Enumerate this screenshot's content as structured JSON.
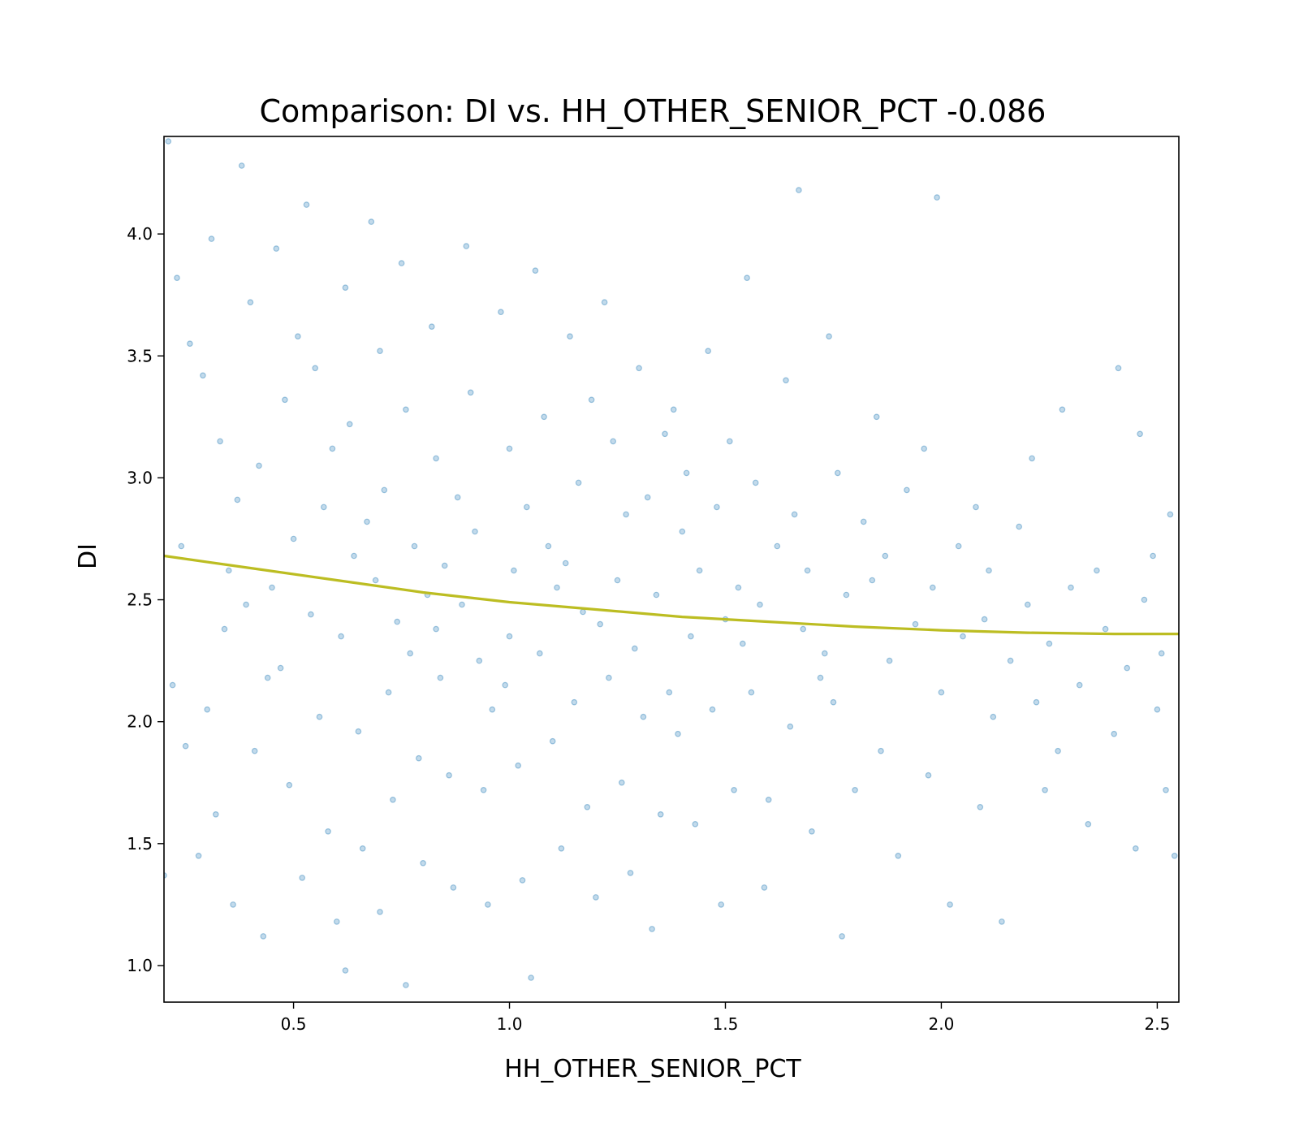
{
  "chart_data": {
    "type": "scatter",
    "title": "Comparison:  DI  vs.  HH_OTHER_SENIOR_PCT  -0.086",
    "xlabel": "HH_OTHER_SENIOR_PCT",
    "ylabel": "DI",
    "xlim": [
      0.2,
      2.55
    ],
    "ylim": [
      0.85,
      4.4
    ],
    "xticks": [
      0.5,
      1.0,
      1.5,
      2.0,
      2.5
    ],
    "xtick_labels": [
      "0.5",
      "1.0",
      "1.5",
      "2.0",
      "2.5"
    ],
    "yticks": [
      1.0,
      1.5,
      2.0,
      2.5,
      3.0,
      3.5,
      4.0
    ],
    "ytick_labels": [
      "1.0",
      "1.5",
      "2.0",
      "2.5",
      "3.0",
      "3.5",
      "4.0"
    ],
    "grid": false,
    "legend": "none",
    "series": [
      {
        "kind": "scatter",
        "color": "#1f77b4",
        "opacity": 0.3,
        "points": [
          [
            0.21,
            4.38
          ],
          [
            0.23,
            3.82
          ],
          [
            0.26,
            3.55
          ],
          [
            0.24,
            2.72
          ],
          [
            0.22,
            2.15
          ],
          [
            0.25,
            1.9
          ],
          [
            0.28,
            1.45
          ],
          [
            0.2,
            1.37
          ],
          [
            0.31,
            3.98
          ],
          [
            0.33,
            3.15
          ],
          [
            0.35,
            2.62
          ],
          [
            0.3,
            2.05
          ],
          [
            0.32,
            1.62
          ],
          [
            0.36,
            1.25
          ],
          [
            0.29,
            3.42
          ],
          [
            0.34,
            2.38
          ],
          [
            0.38,
            4.28
          ],
          [
            0.4,
            3.72
          ],
          [
            0.42,
            3.05
          ],
          [
            0.39,
            2.48
          ],
          [
            0.41,
            1.88
          ],
          [
            0.43,
            1.12
          ],
          [
            0.37,
            2.91
          ],
          [
            0.44,
            2.18
          ],
          [
            0.46,
            3.94
          ],
          [
            0.48,
            3.32
          ],
          [
            0.5,
            2.75
          ],
          [
            0.47,
            2.22
          ],
          [
            0.49,
            1.74
          ],
          [
            0.52,
            1.36
          ],
          [
            0.45,
            2.55
          ],
          [
            0.51,
            3.58
          ],
          [
            0.53,
            4.12
          ],
          [
            0.55,
            3.45
          ],
          [
            0.57,
            2.88
          ],
          [
            0.54,
            2.44
          ],
          [
            0.56,
            2.02
          ],
          [
            0.58,
            1.55
          ],
          [
            0.6,
            1.18
          ],
          [
            0.59,
            3.12
          ],
          [
            0.62,
            3.78
          ],
          [
            0.63,
            3.22
          ],
          [
            0.64,
            2.68
          ],
          [
            0.61,
            2.35
          ],
          [
            0.65,
            1.96
          ],
          [
            0.66,
            1.48
          ],
          [
            0.62,
            0.98
          ],
          [
            0.67,
            2.82
          ],
          [
            0.68,
            4.05
          ],
          [
            0.7,
            3.52
          ],
          [
            0.71,
            2.95
          ],
          [
            0.69,
            2.58
          ],
          [
            0.72,
            2.12
          ],
          [
            0.73,
            1.68
          ],
          [
            0.7,
            1.22
          ],
          [
            0.74,
            2.41
          ],
          [
            0.75,
            3.88
          ],
          [
            0.76,
            3.28
          ],
          [
            0.78,
            2.72
          ],
          [
            0.77,
            2.28
          ],
          [
            0.79,
            1.85
          ],
          [
            0.8,
            1.42
          ],
          [
            0.76,
            0.92
          ],
          [
            0.81,
            2.52
          ],
          [
            0.82,
            3.62
          ],
          [
            0.83,
            3.08
          ],
          [
            0.85,
            2.64
          ],
          [
            0.84,
            2.18
          ],
          [
            0.86,
            1.78
          ],
          [
            0.87,
            1.32
          ],
          [
            0.88,
            2.92
          ],
          [
            0.83,
            2.38
          ],
          [
            0.9,
            3.95
          ],
          [
            0.91,
            3.35
          ],
          [
            0.92,
            2.78
          ],
          [
            0.93,
            2.25
          ],
          [
            0.94,
            1.72
          ],
          [
            0.95,
            1.25
          ],
          [
            0.89,
            2.48
          ],
          [
            0.96,
            2.05
          ],
          [
            0.98,
            3.68
          ],
          [
            1.0,
            3.12
          ],
          [
            1.01,
            2.62
          ],
          [
            0.99,
            2.15
          ],
          [
            1.02,
            1.82
          ],
          [
            1.03,
            1.35
          ],
          [
            1.04,
            2.88
          ],
          [
            1.0,
            2.35
          ],
          [
            1.06,
            3.85
          ],
          [
            1.08,
            3.25
          ],
          [
            1.09,
            2.72
          ],
          [
            1.07,
            2.28
          ],
          [
            1.1,
            1.92
          ],
          [
            1.12,
            1.48
          ],
          [
            1.05,
            0.95
          ],
          [
            1.11,
            2.55
          ],
          [
            1.14,
            3.58
          ],
          [
            1.16,
            2.98
          ],
          [
            1.17,
            2.45
          ],
          [
            1.15,
            2.08
          ],
          [
            1.18,
            1.65
          ],
          [
            1.2,
            1.28
          ],
          [
            1.19,
            3.32
          ],
          [
            1.13,
            2.65
          ],
          [
            1.22,
            3.72
          ],
          [
            1.24,
            3.15
          ],
          [
            1.25,
            2.58
          ],
          [
            1.23,
            2.18
          ],
          [
            1.26,
            1.75
          ],
          [
            1.28,
            1.38
          ],
          [
            1.27,
            2.85
          ],
          [
            1.21,
            2.4
          ],
          [
            1.3,
            3.45
          ],
          [
            1.32,
            2.92
          ],
          [
            1.34,
            2.52
          ],
          [
            1.31,
            2.02
          ],
          [
            1.35,
            1.62
          ],
          [
            1.33,
            1.15
          ],
          [
            1.36,
            3.18
          ],
          [
            1.29,
            2.3
          ],
          [
            1.38,
            3.28
          ],
          [
            1.4,
            2.78
          ],
          [
            1.42,
            2.35
          ],
          [
            1.39,
            1.95
          ],
          [
            1.43,
            1.58
          ],
          [
            1.41,
            3.02
          ],
          [
            1.44,
            2.62
          ],
          [
            1.37,
            2.12
          ],
          [
            1.46,
            3.52
          ],
          [
            1.48,
            2.88
          ],
          [
            1.5,
            2.42
          ],
          [
            1.47,
            2.05
          ],
          [
            1.52,
            1.72
          ],
          [
            1.49,
            1.25
          ],
          [
            1.51,
            3.15
          ],
          [
            1.53,
            2.55
          ],
          [
            1.55,
            3.82
          ],
          [
            1.57,
            2.98
          ],
          [
            1.58,
            2.48
          ],
          [
            1.56,
            2.12
          ],
          [
            1.6,
            1.68
          ],
          [
            1.59,
            1.32
          ],
          [
            1.62,
            2.72
          ],
          [
            1.54,
            2.32
          ],
          [
            1.64,
            3.4
          ],
          [
            1.66,
            2.85
          ],
          [
            1.68,
            2.38
          ],
          [
            1.65,
            1.98
          ],
          [
            1.7,
            1.55
          ],
          [
            1.67,
            4.18
          ],
          [
            1.69,
            2.62
          ],
          [
            1.72,
            2.18
          ],
          [
            1.74,
            3.58
          ],
          [
            1.76,
            3.02
          ],
          [
            1.78,
            2.52
          ],
          [
            1.75,
            2.08
          ],
          [
            1.8,
            1.72
          ],
          [
            1.77,
            1.12
          ],
          [
            1.82,
            2.82
          ],
          [
            1.73,
            2.28
          ],
          [
            1.85,
            3.25
          ],
          [
            1.87,
            2.68
          ],
          [
            1.88,
            2.25
          ],
          [
            1.86,
            1.88
          ],
          [
            1.9,
            1.45
          ],
          [
            1.92,
            2.95
          ],
          [
            1.94,
            2.4
          ],
          [
            1.84,
            2.58
          ],
          [
            1.96,
            3.12
          ],
          [
            1.98,
            2.55
          ],
          [
            2.0,
            2.12
          ],
          [
            1.97,
            1.78
          ],
          [
            2.02,
            1.25
          ],
          [
            1.99,
            4.15
          ],
          [
            2.04,
            2.72
          ],
          [
            2.05,
            2.35
          ],
          [
            2.08,
            2.88
          ],
          [
            2.1,
            2.42
          ],
          [
            2.12,
            2.02
          ],
          [
            2.09,
            1.65
          ],
          [
            2.14,
            1.18
          ],
          [
            2.11,
            2.62
          ],
          [
            2.16,
            2.25
          ],
          [
            2.18,
            2.8
          ],
          [
            2.2,
            2.48
          ],
          [
            2.22,
            2.08
          ],
          [
            2.24,
            1.72
          ],
          [
            2.21,
            3.08
          ],
          [
            2.25,
            2.32
          ],
          [
            2.27,
            1.88
          ],
          [
            2.28,
            3.28
          ],
          [
            2.3,
            2.55
          ],
          [
            2.32,
            2.15
          ],
          [
            2.34,
            1.58
          ],
          [
            2.36,
            2.62
          ],
          [
            2.38,
            2.38
          ],
          [
            2.4,
            1.95
          ],
          [
            2.41,
            3.45
          ],
          [
            2.43,
            2.22
          ],
          [
            2.45,
            1.48
          ],
          [
            2.46,
            3.18
          ],
          [
            2.47,
            2.5
          ],
          [
            2.49,
            2.68
          ],
          [
            2.5,
            2.05
          ],
          [
            2.52,
            1.72
          ],
          [
            2.53,
            2.85
          ],
          [
            2.54,
            1.45
          ],
          [
            2.51,
            2.28
          ]
        ]
      },
      {
        "kind": "line",
        "color": "#bcbd22",
        "points": [
          [
            0.2,
            2.68
          ],
          [
            0.4,
            2.63
          ],
          [
            0.6,
            2.58
          ],
          [
            0.8,
            2.53
          ],
          [
            1.0,
            2.49
          ],
          [
            1.2,
            2.46
          ],
          [
            1.4,
            2.43
          ],
          [
            1.6,
            2.41
          ],
          [
            1.8,
            2.39
          ],
          [
            2.0,
            2.375
          ],
          [
            2.2,
            2.365
          ],
          [
            2.4,
            2.36
          ],
          [
            2.55,
            2.36
          ]
        ]
      }
    ]
  }
}
